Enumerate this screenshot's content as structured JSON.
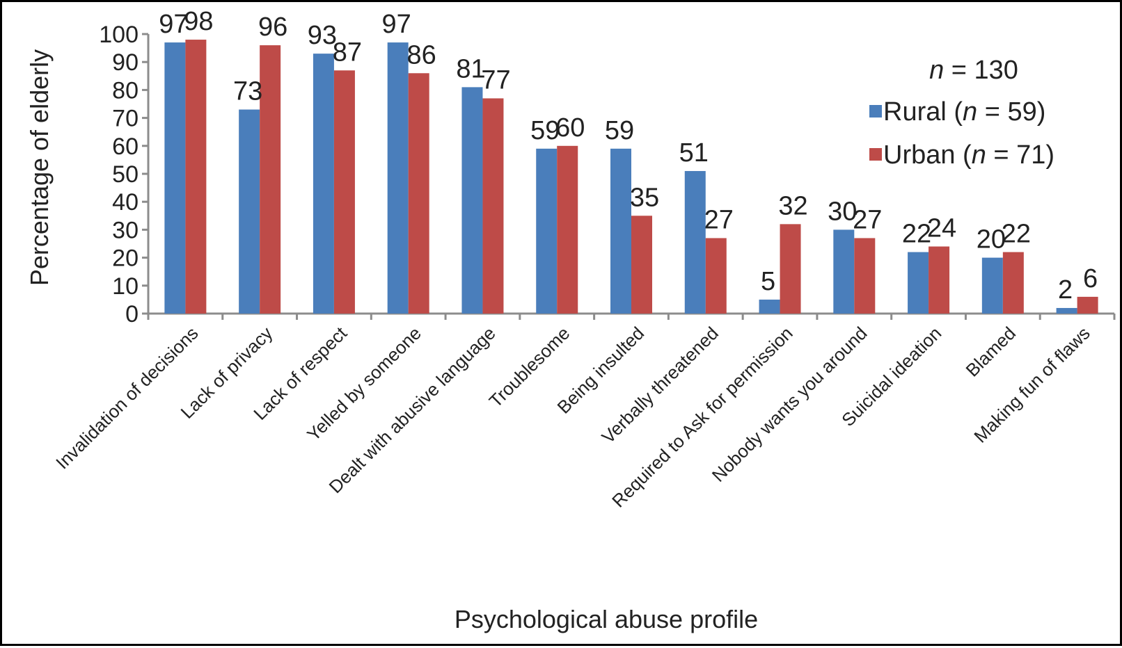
{
  "chart_data": {
    "type": "bar",
    "xlabel": "Psychological abuse profile",
    "ylabel": "Percentage of elderly",
    "ylim": [
      0,
      100
    ],
    "yticks": [
      0,
      10,
      20,
      30,
      40,
      50,
      60,
      70,
      80,
      90,
      100
    ],
    "categories": [
      "Invalidation of decisions",
      "Lack of privacy",
      "Lack of respect",
      "Yelled by someone",
      "Dealt with abusive language",
      "Troublesome",
      "Being insulted",
      "Verbally threatened",
      "Required to Ask for permission",
      "Nobody wants you around",
      "Suicidal ideation",
      "Blamed",
      "Making fun of flaws"
    ],
    "series": [
      {
        "name": "Rural (n = 59)",
        "name_prefix": "Rural (",
        "name_italic": "n",
        "name_suffix": " = 59)",
        "color": "#4a7ebb",
        "values": [
          97,
          73,
          93,
          97,
          81,
          59,
          59,
          51,
          5,
          30,
          22,
          20,
          2
        ]
      },
      {
        "name": "Urban (n = 71)",
        "name_prefix": "Urban (",
        "name_italic": "n",
        "name_suffix": " = 71)",
        "color": "#be4b48",
        "values": [
          98,
          96,
          87,
          86,
          77,
          60,
          35,
          27,
          32,
          27,
          24,
          22,
          6
        ]
      }
    ],
    "annotation": {
      "italic": "n",
      "text": " = 130"
    },
    "legend_position": "top-right",
    "grid": false
  }
}
